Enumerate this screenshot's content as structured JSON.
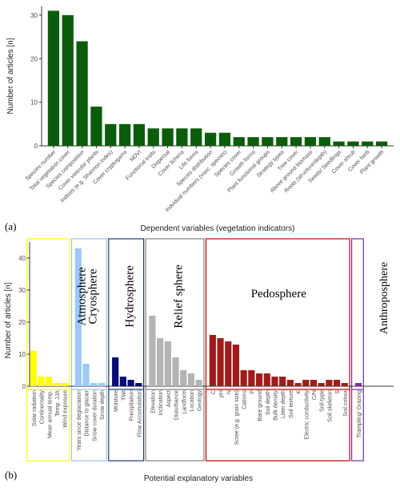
{
  "chart_data": [
    {
      "type": "bar",
      "panel_label": "(a)",
      "ylabel": "Number of articles [n]",
      "xlabel": "Dependent variables (vegetation indicators)",
      "ylim": [
        0,
        32
      ],
      "yticks": [
        0,
        10,
        20,
        30
      ],
      "bar_color": "#0b5d0b",
      "grid": false,
      "categories": [
        "Species number",
        "Total vegetation cover",
        "Species composition",
        "Cover vascular plants",
        "Indices (e.g. Shannon index)",
        "Cover cryptogams",
        "NDVI",
        "Functional traits",
        "Dispersal",
        "Cover lichens",
        "Life forms",
        "Species distribution",
        "Indvidual numbers (vasc. species)",
        "Species cover",
        "Growth forms",
        "Plant functional groups",
        "Strategy types",
        "Tree cover",
        "Above ground biomass",
        "Roots (structure/depth)",
        "Seeds/ Seedlings",
        "Cover shrub",
        "Cover herb",
        "Plant growth"
      ],
      "values": [
        31,
        30,
        24,
        9,
        5,
        5,
        5,
        4,
        4,
        4,
        4,
        3,
        3,
        2,
        2,
        2,
        2,
        2,
        2,
        2,
        1,
        1,
        1,
        1
      ]
    },
    {
      "type": "bar",
      "panel_label": "(b)",
      "ylabel": "Number of articles [n]",
      "xlabel": "Potential explanatory variables",
      "ylim": [
        0,
        45
      ],
      "yticks": [
        0,
        10,
        20,
        30,
        40
      ],
      "grid": false,
      "groups": [
        {
          "name": "Atmosphere",
          "box_color": "#ffff00",
          "bar_color": "#ffff00",
          "categories": [
            "Solar radiation",
            "Continentality",
            "Mean annual temp.",
            "Temp. JJA",
            "Wind exposure"
          ],
          "values": [
            11,
            3,
            3,
            1,
            1
          ]
        },
        {
          "name": "Cryosphere",
          "box_color": "#9dc3e6",
          "bar_color": "#9cc9f5",
          "categories": [
            "Years since deglaciation",
            "Distance to glacier",
            "Snow cover duration",
            "Snow depth"
          ],
          "values": [
            43,
            7,
            1,
            1
          ]
        },
        {
          "name": "Hydrosphere",
          "box_color": "#1f3a6e",
          "bar_color": "#0a0a78",
          "categories": [
            "Moisture",
            "TWI",
            "Precipitation",
            "Flow Accumulation"
          ],
          "values": [
            9,
            3,
            2,
            1
          ]
        },
        {
          "name": "Relief sphere",
          "box_color": "#808080",
          "bar_color": "#b4b4b4",
          "categories": [
            "Elevation",
            "Inclination",
            "Aspect",
            "Disturbance",
            "Landform",
            "Location",
            "Geology"
          ],
          "values": [
            22,
            15,
            14,
            9,
            5,
            4,
            2
          ]
        },
        {
          "name": "Pedosphere",
          "box_color": "#c00000",
          "bar_color": "#a01c1c",
          "categories": [
            "C",
            "pH",
            "N",
            "Scree (e.g. grain size)",
            "Cations",
            "P",
            "Bare ground",
            "Soil depth",
            "Bulk density",
            "Litter depth",
            "Soil texture",
            "K",
            "Electric conductivity",
            "C/N",
            "Soil type",
            "Soil skeleton",
            "S",
            "Soil colour"
          ],
          "values": [
            16,
            15,
            14,
            13,
            5,
            5,
            4,
            4,
            3,
            3,
            2,
            1,
            2,
            2,
            1,
            2,
            2,
            1
          ]
        },
        {
          "name": "Anthroposphere",
          "box_color": "#7030a0",
          "bar_color": "#7d2d9b",
          "categories": [
            "Trampling/ Grazing"
          ],
          "values": [
            1
          ]
        }
      ]
    }
  ]
}
